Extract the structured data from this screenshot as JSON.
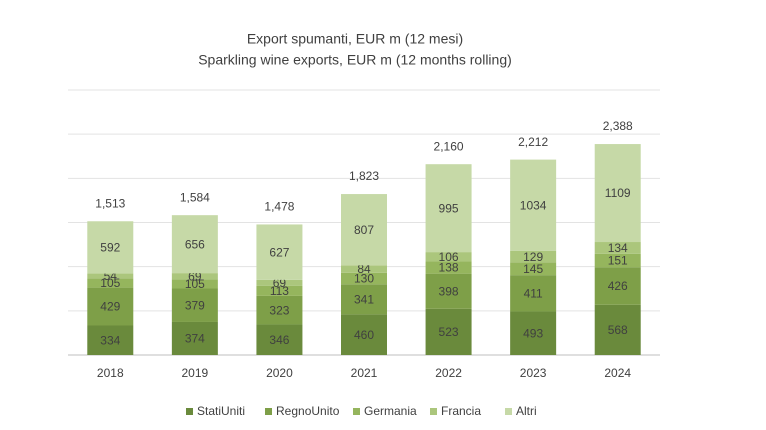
{
  "chart_data": {
    "type": "stacked_bar",
    "title": "Export spumanti, EUR m (12 mesi)",
    "subtitle": "Sparkling wine exports, EUR  m (12 months rolling)",
    "categories": [
      "2018",
      "2019",
      "2020",
      "2021",
      "2022",
      "2023",
      "2024"
    ],
    "series": [
      {
        "name": "StatiUniti",
        "color": "#6a8a3c",
        "values": [
          334,
          374,
          346,
          460,
          523,
          493,
          568
        ]
      },
      {
        "name": "RegnoUnito",
        "color": "#7e9f48",
        "values": [
          429,
          379,
          323,
          341,
          398,
          411,
          426
        ]
      },
      {
        "name": "Germania",
        "color": "#95b55d",
        "values": [
          105,
          105,
          113,
          130,
          138,
          145,
          151
        ]
      },
      {
        "name": "Francia",
        "color": "#abc67c",
        "values": [
          54,
          69,
          69,
          84,
          106,
          129,
          134
        ]
      },
      {
        "name": "Altri",
        "color": "#c6d9a7",
        "values": [
          592,
          656,
          627,
          807,
          995,
          1034,
          1109
        ]
      }
    ],
    "totals": [
      {
        "value": 1513,
        "label": "1,513"
      },
      {
        "value": 1584,
        "label": "1,584"
      },
      {
        "value": 1478,
        "label": "1,478"
      },
      {
        "value": 1823,
        "label": "1,823"
      },
      {
        "value": 2160,
        "label": "2,160"
      },
      {
        "value": 2212,
        "label": "2,212"
      },
      {
        "value": 2388,
        "label": "2,388"
      }
    ],
    "ylim": [
      0,
      3000
    ],
    "yticks": [
      0,
      500,
      1000,
      1500,
      2000,
      2500,
      3000
    ],
    "grid": true
  }
}
